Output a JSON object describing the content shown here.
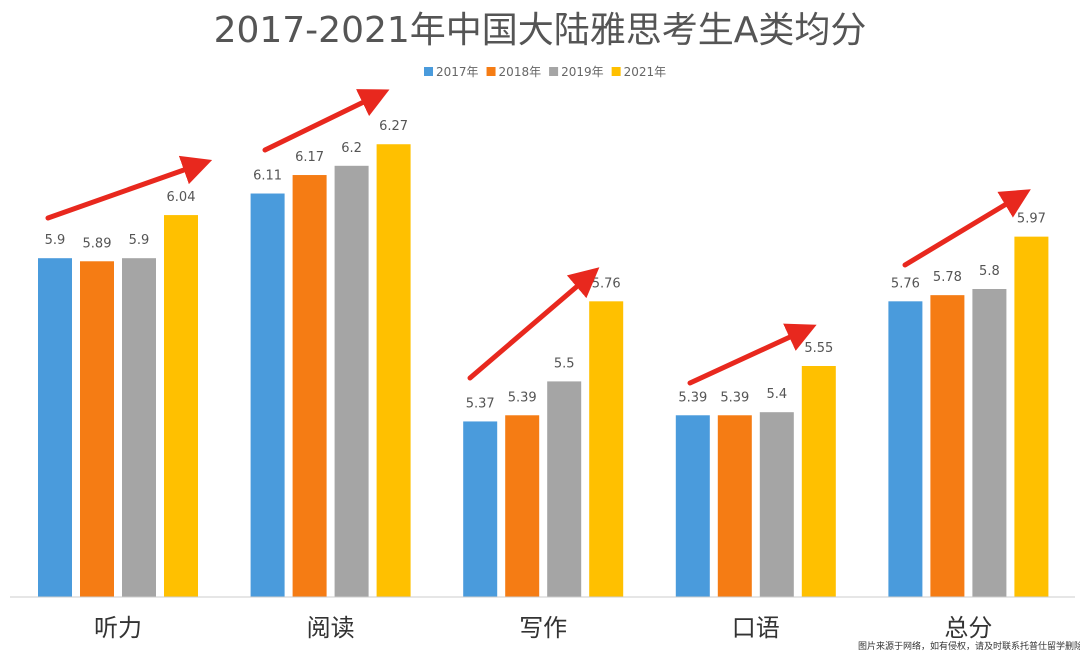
{
  "chart_data": {
    "type": "bar",
    "title": "2017-2021年中国大陆雅思考生A类均分",
    "categories": [
      "听力",
      "阅读",
      "写作",
      "口语",
      "总分"
    ],
    "series": [
      {
        "name": "2017年",
        "color": "#4A9BDC",
        "values": [
          5.9,
          6.11,
          5.37,
          5.39,
          5.76
        ]
      },
      {
        "name": "2018年",
        "color": "#F57C14",
        "values": [
          5.89,
          6.17,
          5.39,
          5.39,
          5.78
        ]
      },
      {
        "name": "2019年",
        "color": "#A5A5A5",
        "values": [
          5.9,
          6.2,
          5.5,
          5.4,
          5.8
        ]
      },
      {
        "name": "2021年",
        "color": "#FFC000",
        "values": [
          6.04,
          6.27,
          5.76,
          5.55,
          5.97
        ]
      }
    ],
    "ylim": [
      4.8,
      6.5
    ],
    "grid": false,
    "legend": "top-center",
    "annotation_color": "#E8281E",
    "annotations": "red upward arrows over each category"
  },
  "watermark": "图片来源于网络，如有侵权，请及时联系托普仕留学删除"
}
